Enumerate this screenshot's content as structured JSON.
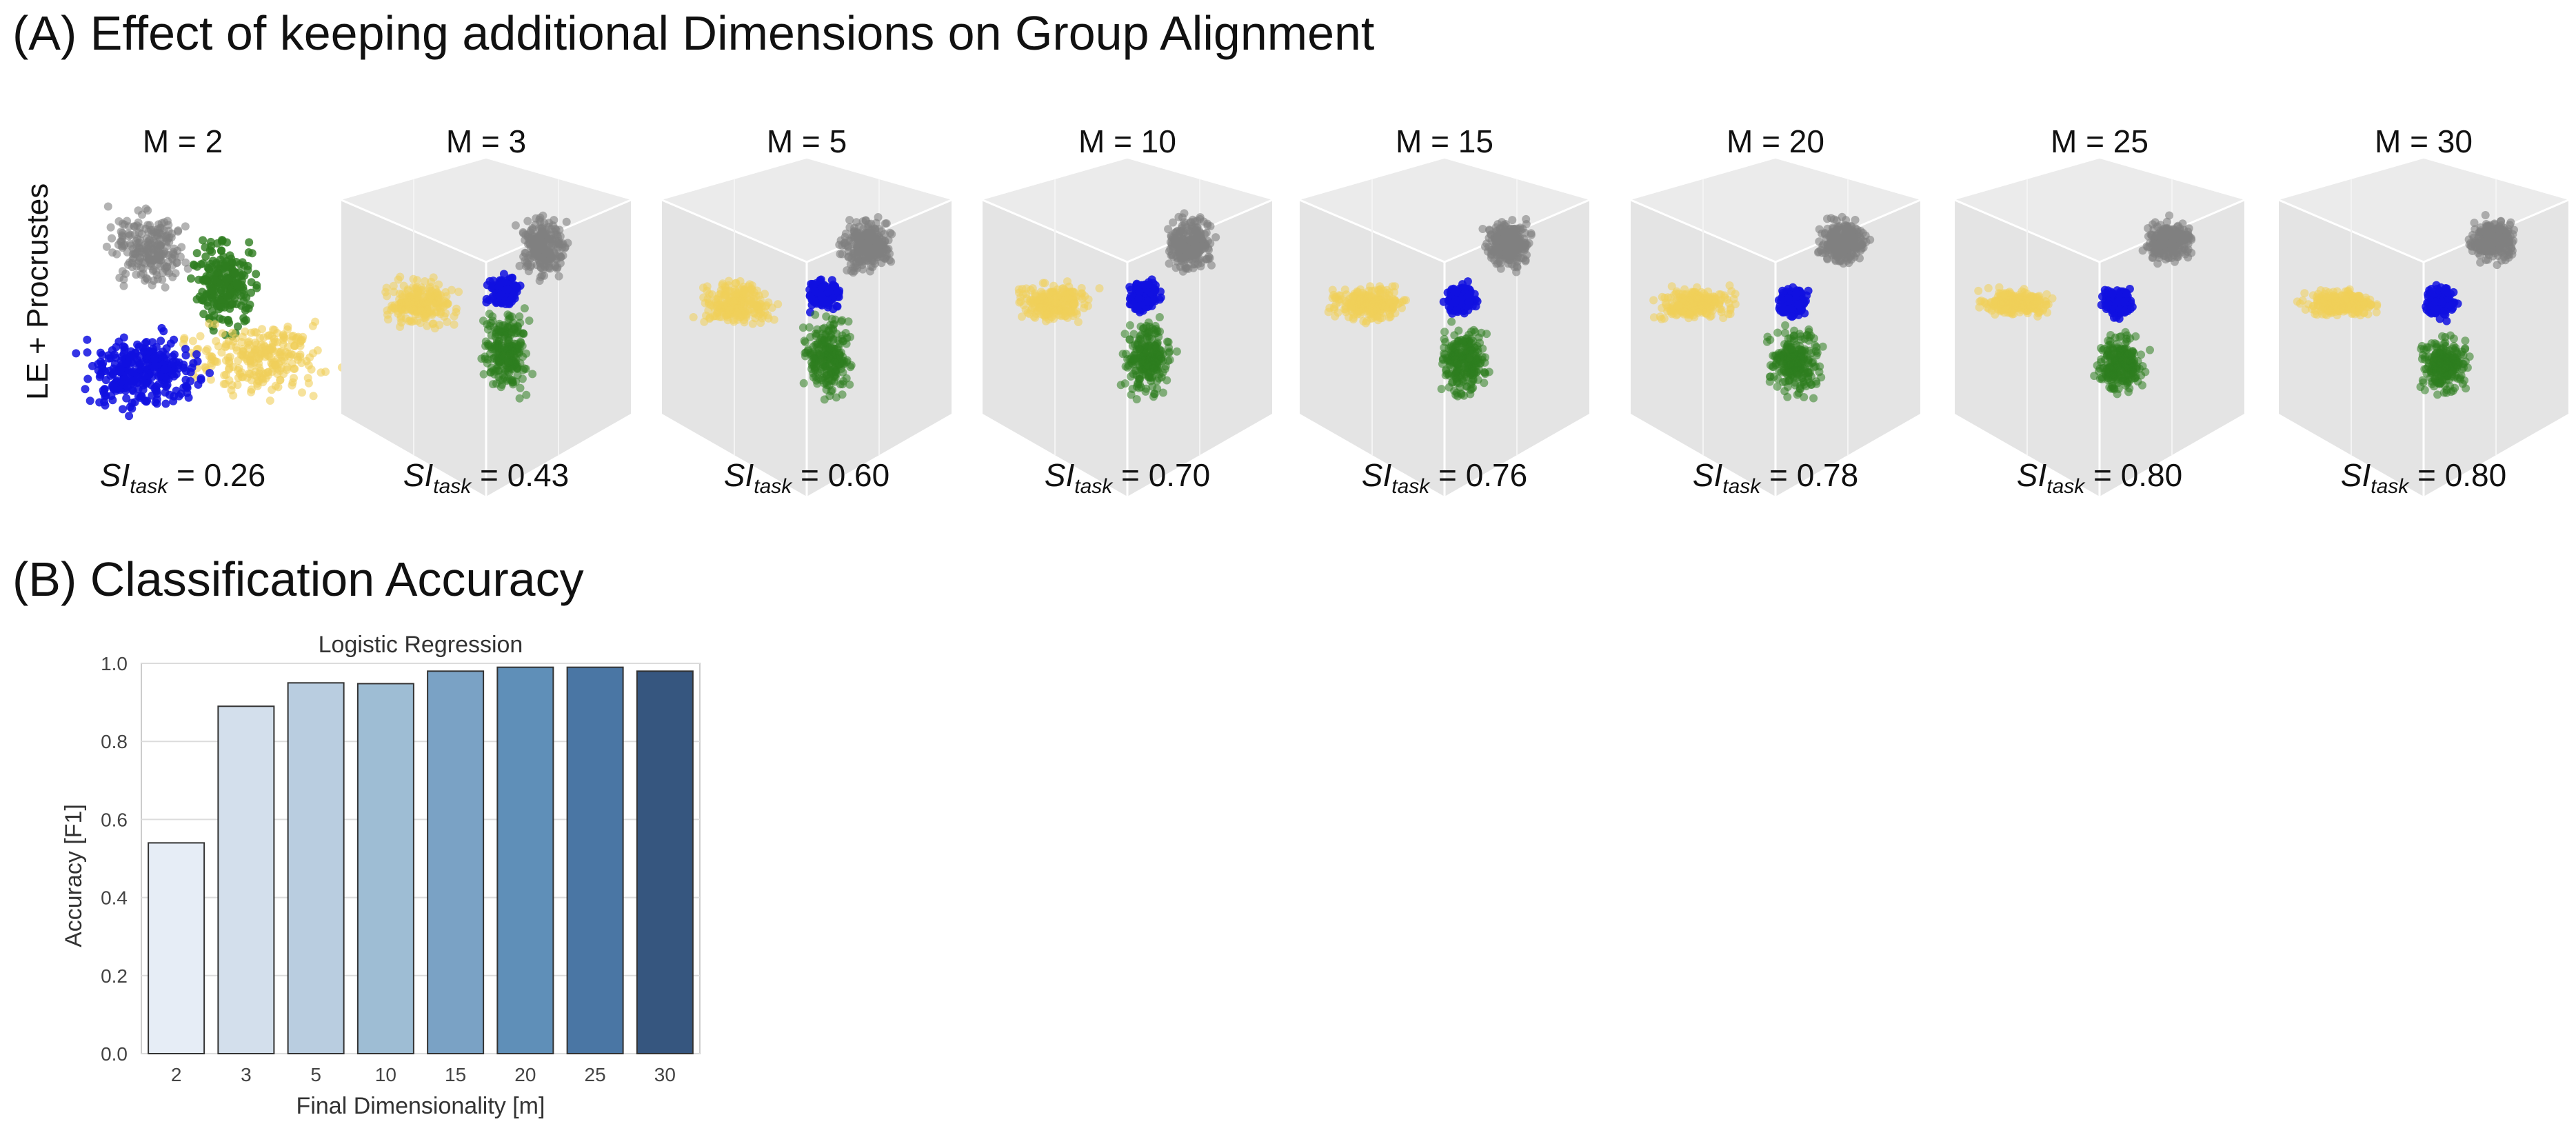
{
  "section_a": {
    "title": "(A) Effect of keeping additional Dimensions on Group Alignment",
    "row_label": "LE + Procrustes",
    "panels": [
      {
        "title": "M = 2",
        "si_prefix": "SI",
        "si_sub": "task",
        "si_value": "= 0.26"
      },
      {
        "title": "M = 3",
        "si_prefix": "SI",
        "si_sub": "task",
        "si_value": "= 0.43"
      },
      {
        "title": "M = 5",
        "si_prefix": "SI",
        "si_sub": "task",
        "si_value": "= 0.60"
      },
      {
        "title": "M = 10",
        "si_prefix": "SI",
        "si_sub": "task",
        "si_value": "= 0.70"
      },
      {
        "title": "M = 15",
        "si_prefix": "SI",
        "si_sub": "task",
        "si_value": "= 0.76"
      },
      {
        "title": "M = 20",
        "si_prefix": "SI",
        "si_sub": "task",
        "si_value": "= 0.78"
      },
      {
        "title": "M = 25",
        "si_prefix": "SI",
        "si_sub": "task",
        "si_value": "= 0.80"
      },
      {
        "title": "M = 30",
        "si_prefix": "SI",
        "si_sub": "task",
        "si_value": "= 0.80"
      }
    ],
    "cluster_colors": {
      "gray": "#808080",
      "green": "#2e7d1f",
      "blue": "#1010e0",
      "yellow": "#f0cf5a"
    }
  },
  "section_b": {
    "title": "(B) Classification Accuracy"
  },
  "chart_data": {
    "type": "bar",
    "title": "Logistic Regression",
    "xlabel": "Final Dimensionality [m]",
    "ylabel": "Accuracy [F1]",
    "categories": [
      "2",
      "3",
      "5",
      "10",
      "15",
      "20",
      "25",
      "30"
    ],
    "values": [
      0.54,
      0.89,
      0.95,
      0.948,
      0.98,
      0.99,
      0.99,
      0.98
    ],
    "ylim": [
      0,
      1.0
    ],
    "yticks": [
      "0.0",
      "0.2",
      "0.4",
      "0.6",
      "0.8",
      "1.0"
    ],
    "grid": true,
    "colors": [
      "#e6edf6",
      "#d3dfec",
      "#b9cde0",
      "#9ebdd4",
      "#7aa2c5",
      "#5f8fb8",
      "#4a76a4",
      "#36567f"
    ]
  }
}
